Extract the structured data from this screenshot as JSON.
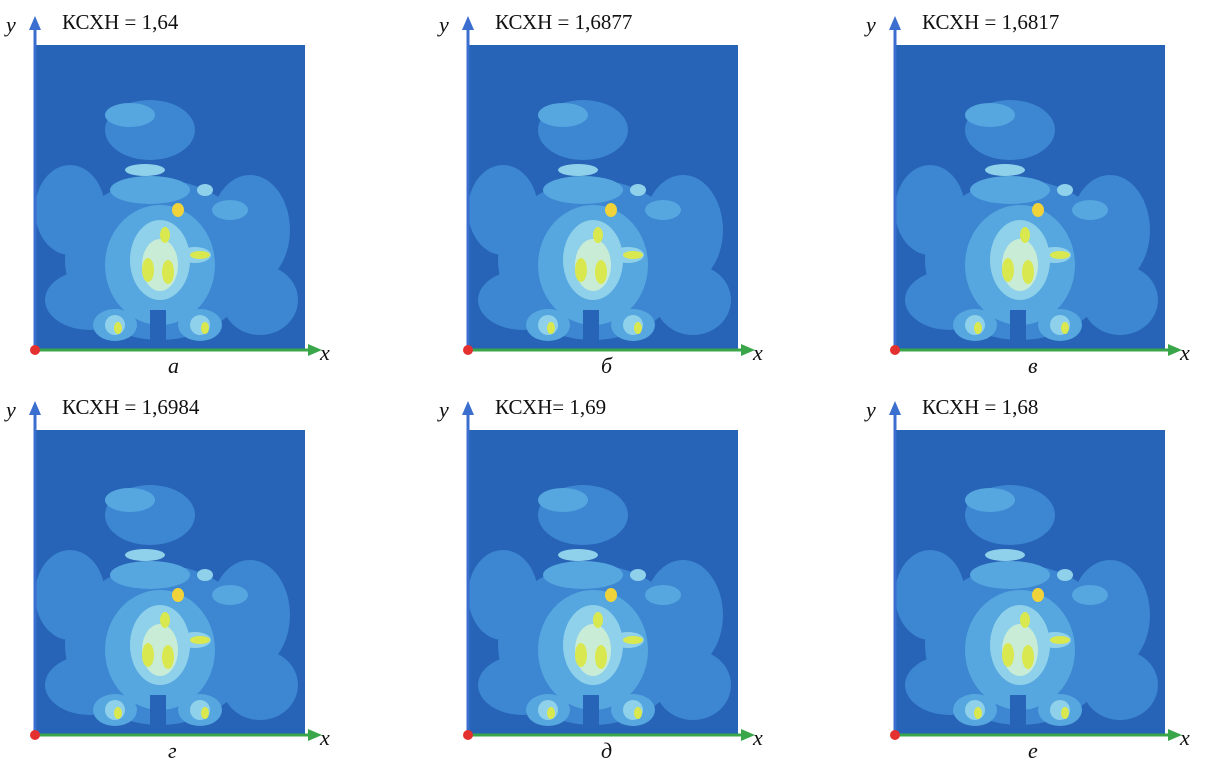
{
  "panels": [
    {
      "ksxh": "КСХН = 1,64",
      "y_axis": "y",
      "x_axis": "x",
      "label": "а"
    },
    {
      "ksxh": "КСХН = 1,6877",
      "y_axis": "y",
      "x_axis": "x",
      "label": "б"
    },
    {
      "ksxh": "КСХН = 1,6817",
      "y_axis": "y",
      "x_axis": "x",
      "label": "в"
    },
    {
      "ksxh": "КСХН = 1,6984",
      "y_axis": "y",
      "x_axis": "x",
      "label": "г"
    },
    {
      "ksxh": "КСХН= 1,69",
      "y_axis": "y",
      "x_axis": "x",
      "label": "д"
    },
    {
      "ksxh": "КСХН = 1,68",
      "y_axis": "y",
      "x_axis": "x",
      "label": "е"
    }
  ],
  "colors": {
    "background_field": "#2763b6",
    "level1": "#3c86d2",
    "level2": "#56a6df",
    "level3": "#8fd1ea",
    "level4": "#c9ecd6",
    "level5": "#d9e84f",
    "level6": "#f0d23a",
    "y_axis": "#3a6fd0",
    "x_axis": "#3aa64a",
    "origin": "#e53030"
  }
}
